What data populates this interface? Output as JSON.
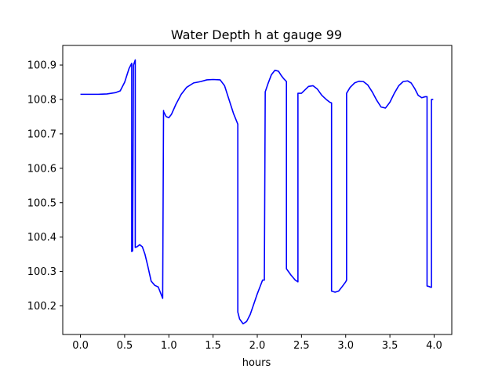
{
  "chart_data": {
    "type": "line",
    "title": "Water Depth h at gauge 99",
    "xlabel": "hours",
    "ylabel": "",
    "xlim": [
      -0.2,
      4.2
    ],
    "ylim": [
      100.117,
      100.957
    ],
    "x_ticks": [
      0.0,
      0.5,
      1.0,
      1.5,
      2.0,
      2.5,
      3.0,
      3.5,
      4.0
    ],
    "x_tick_labels": [
      "0.0",
      "0.5",
      "1.0",
      "1.5",
      "2.0",
      "2.5",
      "3.0",
      "3.5",
      "4.0"
    ],
    "y_ticks": [
      100.2,
      100.3,
      100.4,
      100.5,
      100.6,
      100.7,
      100.8,
      100.9
    ],
    "y_tick_labels": [
      "100.2",
      "100.3",
      "100.4",
      "100.5",
      "100.6",
      "100.7",
      "100.8",
      "100.9"
    ],
    "grid": false,
    "series": [
      {
        "color": "#0000ff",
        "x": [
          0.0,
          0.1,
          0.2,
          0.3,
          0.4,
          0.45,
          0.5,
          0.55,
          0.57,
          0.58,
          0.58,
          0.59,
          0.6,
          0.62,
          0.62,
          0.64,
          0.67,
          0.7,
          0.73,
          0.76,
          0.8,
          0.84,
          0.88,
          0.93,
          0.94,
          0.94,
          0.97,
          1.0,
          1.03,
          1.08,
          1.14,
          1.2,
          1.28,
          1.36,
          1.43,
          1.5,
          1.58,
          1.63,
          1.68,
          1.73,
          1.78,
          1.78,
          1.8,
          1.84,
          1.88,
          1.92,
          1.96,
          2.0,
          2.03,
          2.06,
          2.08,
          2.09,
          2.12,
          2.16,
          2.2,
          2.24,
          2.27,
          2.3,
          2.33,
          2.33,
          2.38,
          2.43,
          2.46,
          2.46,
          2.5,
          2.54,
          2.58,
          2.63,
          2.68,
          2.73,
          2.78,
          2.82,
          2.84,
          2.84,
          2.88,
          2.92,
          2.96,
          3.0,
          3.01,
          3.01,
          3.05,
          3.1,
          3.15,
          3.2,
          3.25,
          3.3,
          3.35,
          3.4,
          3.45,
          3.5,
          3.55,
          3.6,
          3.65,
          3.7,
          3.74,
          3.78,
          3.82,
          3.86,
          3.9,
          3.92,
          3.92,
          3.95,
          3.95,
          3.97,
          3.97,
          3.99
        ],
        "y": [
          100.815,
          100.815,
          100.815,
          100.816,
          100.82,
          100.825,
          100.85,
          100.89,
          100.9,
          100.905,
          100.358,
          100.36,
          100.9,
          100.915,
          100.37,
          100.372,
          100.378,
          100.372,
          100.35,
          100.318,
          100.272,
          100.26,
          100.255,
          100.222,
          100.768,
          100.765,
          100.75,
          100.747,
          100.757,
          100.786,
          100.815,
          100.835,
          100.848,
          100.852,
          100.857,
          100.858,
          100.857,
          100.84,
          100.8,
          100.76,
          100.728,
          100.182,
          100.162,
          100.148,
          100.155,
          100.175,
          100.205,
          100.235,
          100.255,
          100.275,
          100.275,
          100.822,
          100.845,
          100.872,
          100.885,
          100.882,
          100.87,
          100.86,
          100.852,
          100.308,
          100.29,
          100.275,
          100.27,
          100.818,
          100.818,
          100.828,
          100.838,
          100.84,
          100.83,
          100.812,
          100.8,
          100.792,
          100.79,
          100.243,
          100.24,
          100.243,
          100.256,
          100.27,
          100.275,
          100.818,
          100.835,
          100.848,
          100.853,
          100.852,
          100.842,
          100.822,
          100.798,
          100.778,
          100.775,
          100.792,
          100.818,
          100.84,
          100.852,
          100.854,
          100.848,
          100.832,
          100.812,
          100.805,
          100.808,
          100.808,
          100.258,
          100.256,
          100.255,
          100.254,
          100.8,
          100.8
        ]
      }
    ]
  }
}
